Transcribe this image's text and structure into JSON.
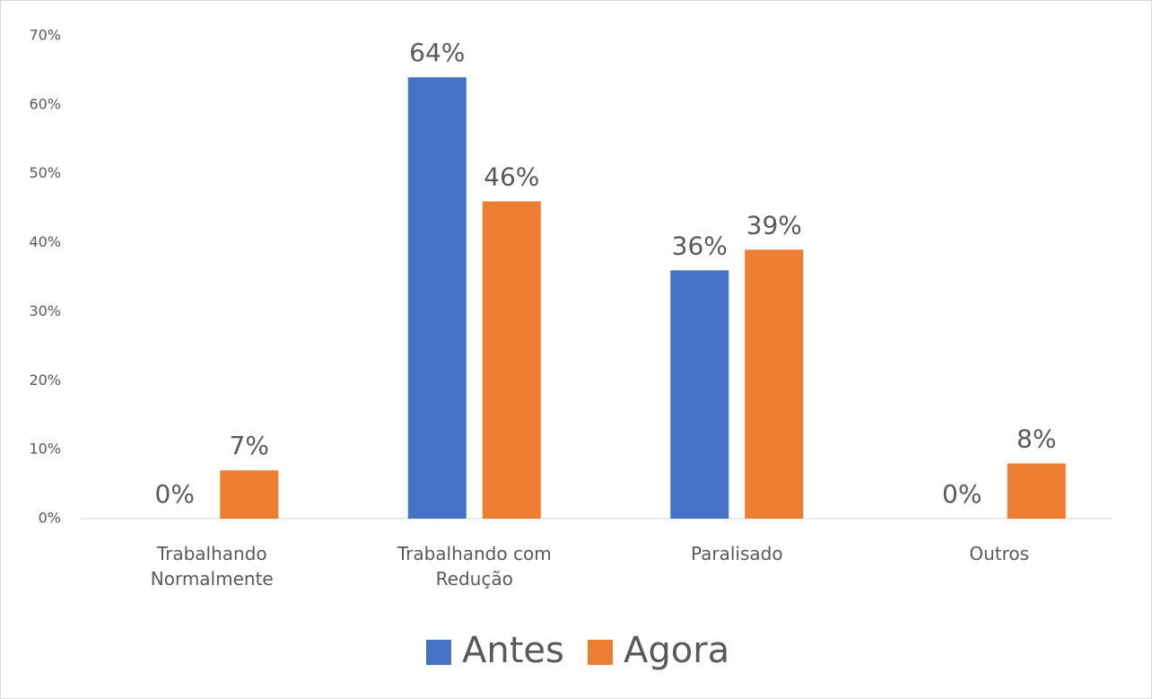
{
  "chart_data": {
    "type": "bar",
    "categories": [
      "Trabalhando Normalmente",
      "Trabalhando com Redução",
      "Paralisado",
      "Outros"
    ],
    "series": [
      {
        "name": "Antes",
        "color": "#4472c4",
        "values": [
          0,
          64,
          36,
          0
        ],
        "value_labels": [
          "0%",
          "64%",
          "36%",
          "0%"
        ]
      },
      {
        "name": "Agora",
        "color": "#ed7d31",
        "values": [
          7,
          46,
          39,
          8
        ],
        "value_labels": [
          "7%",
          "46%",
          "39%",
          "8%"
        ]
      }
    ],
    "ylim": [
      0,
      70
    ],
    "yticks": [
      {
        "value": 0,
        "label": "0%"
      },
      {
        "value": 10,
        "label": "10%"
      },
      {
        "value": 20,
        "label": "20%"
      },
      {
        "value": 30,
        "label": "30%"
      },
      {
        "value": 40,
        "label": "40%"
      },
      {
        "value": 50,
        "label": "50%"
      },
      {
        "value": 60,
        "label": "60%"
      },
      {
        "value": 70,
        "label": "70%"
      }
    ],
    "grid": false,
    "legend": "bottom"
  }
}
